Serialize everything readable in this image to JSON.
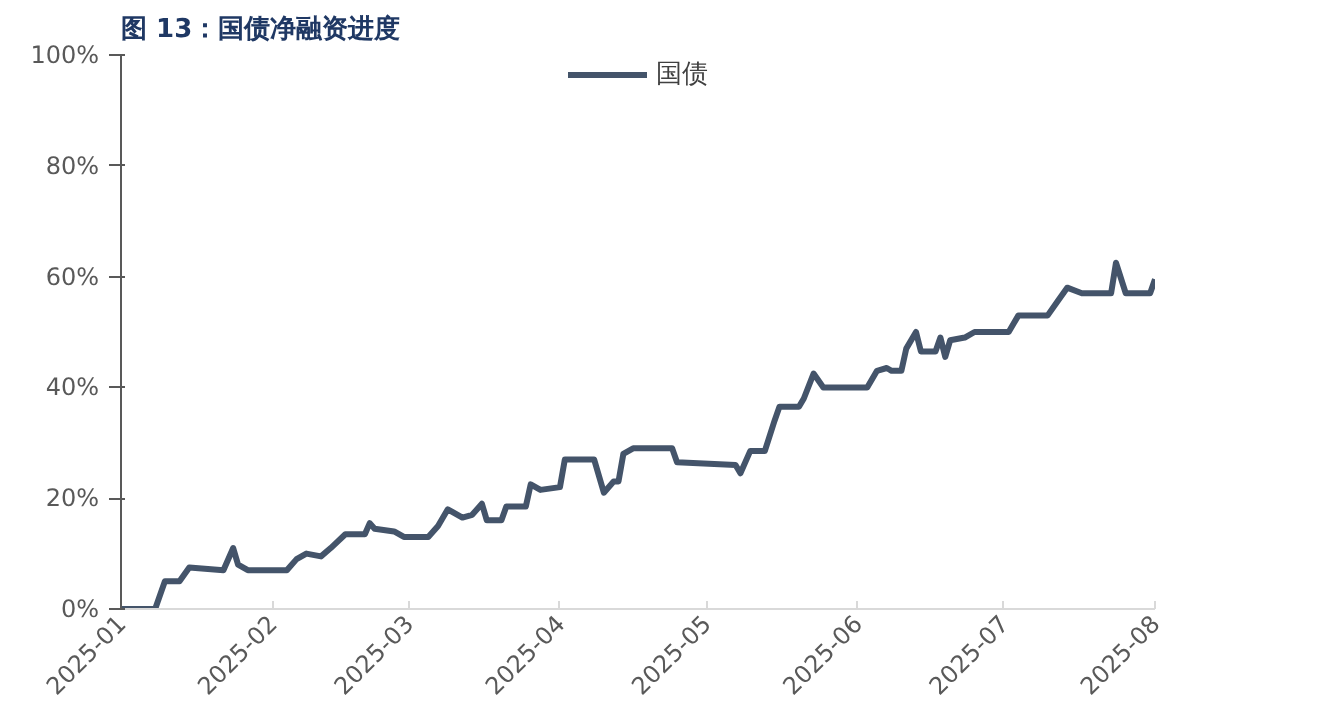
{
  "chart_data": {
    "type": "line",
    "title": "图 13：国债净融资进度",
    "x": [
      "2025-01-01",
      "2025-01-08",
      "2025-01-10",
      "2025-01-13",
      "2025-01-15",
      "2025-01-22",
      "2025-01-24",
      "2025-01-25",
      "2025-01-27",
      "2025-02-04",
      "2025-02-06",
      "2025-02-08",
      "2025-02-11",
      "2025-02-13",
      "2025-02-16",
      "2025-02-20",
      "2025-02-21",
      "2025-02-22",
      "2025-02-26",
      "2025-02-28",
      "2025-03-05",
      "2025-03-07",
      "2025-03-09",
      "2025-03-12",
      "2025-03-14",
      "2025-03-16",
      "2025-03-17",
      "2025-03-20",
      "2025-03-21",
      "2025-03-25",
      "2025-03-26",
      "2025-03-28",
      "2025-04-01",
      "2025-04-02",
      "2025-04-08",
      "2025-04-10",
      "2025-04-12",
      "2025-04-13",
      "2025-04-14",
      "2025-04-16",
      "2025-04-24",
      "2025-04-25",
      "2025-05-07",
      "2025-05-08",
      "2025-05-10",
      "2025-05-13",
      "2025-05-15",
      "2025-05-16",
      "2025-05-20",
      "2025-05-21",
      "2025-05-23",
      "2025-05-25",
      "2025-06-03",
      "2025-06-05",
      "2025-06-07",
      "2025-06-08",
      "2025-06-10",
      "2025-06-11",
      "2025-06-13",
      "2025-06-14",
      "2025-06-17",
      "2025-06-18",
      "2025-06-19",
      "2025-06-20",
      "2025-06-23",
      "2025-06-25",
      "2025-07-02",
      "2025-07-04",
      "2025-07-10",
      "2025-07-12",
      "2025-07-14",
      "2025-07-17",
      "2025-07-23",
      "2025-07-24",
      "2025-07-26",
      "2025-07-31",
      "2025-08-01"
    ],
    "series": [
      {
        "name": "国债",
        "color": "#44546a",
        "values": [
          0,
          0,
          5,
          5,
          7.5,
          7,
          11,
          8,
          7,
          7,
          9,
          10,
          9.5,
          11,
          13.5,
          13.5,
          15.5,
          14.5,
          14,
          13,
          13,
          15,
          18,
          16.5,
          17,
          19,
          16,
          16,
          18.5,
          18.5,
          22.5,
          21.5,
          22,
          27,
          27,
          21,
          23,
          23,
          28,
          29,
          29,
          26.5,
          26,
          24.5,
          28.5,
          28.5,
          34,
          36.5,
          36.5,
          38,
          42.5,
          40,
          40,
          43,
          43.5,
          43,
          43,
          47,
          50,
          46.5,
          46.5,
          49,
          45.5,
          48.5,
          49,
          50,
          50,
          53,
          53,
          55.5,
          58,
          57,
          57,
          62.5,
          57,
          57,
          59.5
        ]
      }
    ],
    "ylim": [
      0,
      100
    ],
    "yticks": [
      {
        "value": 0,
        "label": "0%"
      },
      {
        "value": 20,
        "label": "20%"
      },
      {
        "value": 40,
        "label": "40%"
      },
      {
        "value": 60,
        "label": "60%"
      },
      {
        "value": 80,
        "label": "80%"
      },
      {
        "value": 100,
        "label": "100%"
      }
    ],
    "xlim": [
      "2025-01-01",
      "2025-08-01"
    ],
    "xticks": [
      "2025-01",
      "2025-02",
      "2025-03",
      "2025-04",
      "2025-05",
      "2025-06",
      "2025-07",
      "2025-08"
    ],
    "grid": false,
    "legend": "top",
    "marker": "none",
    "line_style": "solid"
  }
}
